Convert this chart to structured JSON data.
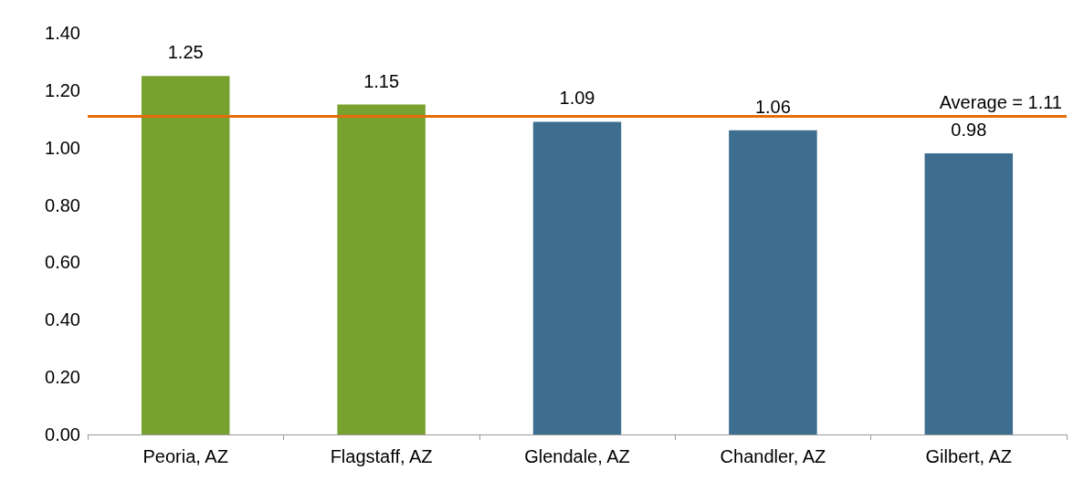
{
  "chart_data": {
    "type": "bar",
    "categories": [
      "Peoria, AZ",
      "Flagstaff, AZ",
      "Glendale, AZ",
      "Chandler, AZ",
      "Gilbert, AZ"
    ],
    "values": [
      1.25,
      1.15,
      1.09,
      1.06,
      0.98
    ],
    "colors": [
      "#78a22f",
      "#78a22f",
      "#3d6e8f",
      "#3d6e8f",
      "#3d6e8f"
    ],
    "data_labels": true,
    "ylim": [
      0,
      1.4
    ],
    "yticks": [
      {
        "value": 0,
        "label": "0.00"
      },
      {
        "value": 0.2,
        "label": "0.20"
      },
      {
        "value": 0.4,
        "label": "0.40"
      },
      {
        "value": 0.6,
        "label": "0.60"
      },
      {
        "value": 0.8,
        "label": "0.80"
      },
      {
        "value": 1.0,
        "label": "1.00"
      },
      {
        "value": 1.2,
        "label": "1.20"
      },
      {
        "value": 1.4,
        "label": "1.40"
      }
    ],
    "ref_lines": [
      {
        "axis": "y",
        "value": 1.11,
        "label": "Average = 1.11",
        "color": "#e36c09"
      }
    ],
    "grid": false
  }
}
